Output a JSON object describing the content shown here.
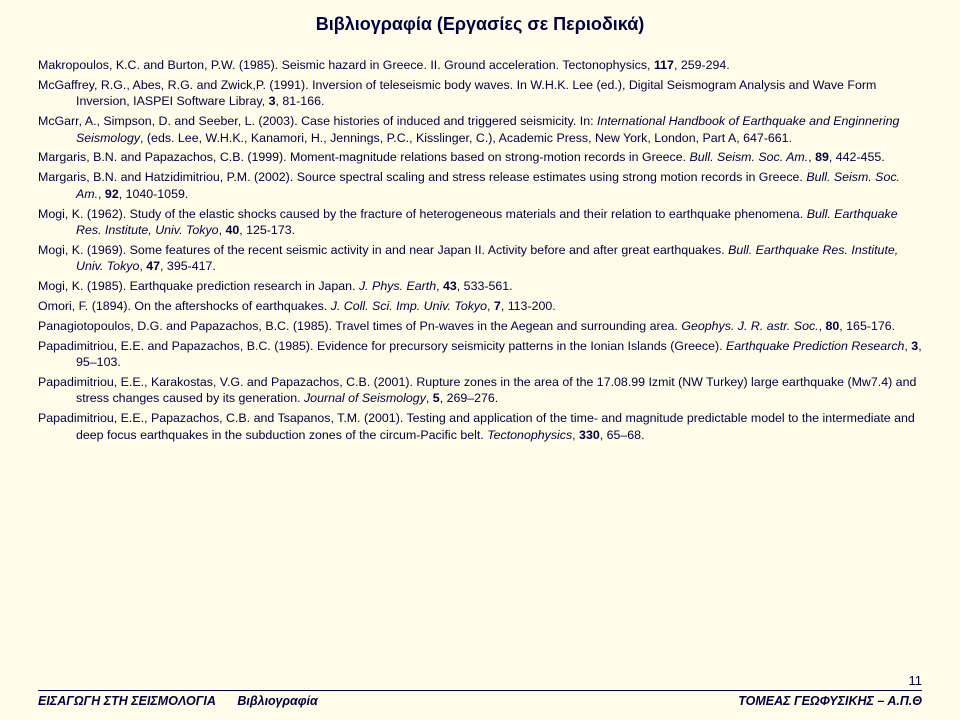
{
  "title": "Βιβλιογραφία  (Εργασίες σε Περιοδικά)",
  "references": [
    "Makropoulos, K.C. and Burton, P.W. (1985). Seismic hazard in Greece. II. Ground acceleration. Tectonophysics, <b>117</b>, 259-294.",
    "McGaffrey, R.G., Abes, R.G. and Zwick,P. (1991). Inversion of teleseismic body waves. In W.H.K. Lee (ed.), Digital Seismogram Analysis and Wave Form Inversion, IASPEI Software Libray, <b>3</b>, 81-166.",
    "McGarr, A., Simpson, D. and Seeber, L. (2003). Case histories of induced and triggered seismicity. In: <i>International Handbook of Earthquake and Enginnering Seismology</i>, (eds. Lee, W.H.K., Kanamori, H., Jennings, P.C., Kisslinger, C.), Academic Press, New York, London, Part A, 647-661.",
    "Margaris, B.N. and Papazachos, C.B. (1999). Moment-magnitude relations based on strong-motion records in Greece. <i>Bull. Seism. Soc. Am.</i>, <b>89</b>, 442-455.",
    "Margaris, B.N. and Hatzidimitriou, P.M. (2002). Source spectral scaling and stress release estimates using strong motion records in Greece. <i>Bull. Seism. Soc. Am.</i>, <b>92</b>, 1040-1059.",
    "Mogi, K. (1962). Study of the elastic shocks caused by the fracture of heterogeneous materials and their relation to earthquake phenomena. <i>Bull. Earthquake Res. Institute, Univ. Tokyo</i>, <b>40</b>, 125-173.",
    "Mogi, K. (1969). Some features of the recent seismic activity in and near Japan II. Activity before and after great earthquakes. <i>Bull. Earthquake Res. Institute, Univ. Tokyo</i>, <b>47</b>, 395-417.",
    "Mogi, K. (1985). Earthquake prediction research in Japan. <i>J. Phys. Earth</i>, <b>43</b>, 533-561.",
    "Omori, F. (1894). On the aftershocks of earthquakes. <i>J. Coll. Sci. Imp. Univ. Tokyo</i>, <b>7</b>, 113-200.",
    "Panagiotopoulos, D.G. and Papazachos, B.C. (1985). Travel times of Pn-waves in the Aegean and surrounding area. <i>Geophys. J. R. astr. Soc.</i>, <b>80</b>, 165-176.",
    "Papadimitriou, E.E. and Papazachos, B.C. (1985). Evidence for precursory seismicity patterns in the Ionian Islands (Greece). <i>Earthquake Prediction Research</i>, <b>3</b>, 95–103.",
    "Papadimitriou, E.E., Karakostas, V.G. and Papazachos, C.B. (2001). Rupture zones in the area of the 17.08.99 Izmit (NW Turkey) large earthquake (Mw7.4) and stress changes caused by its generation. <i>Journal of Seismology</i>, <b>5</b>, 269–276.",
    "Papadimitriou, E.E., Papazachos, C.B. and Tsapanos, T.M. (2001). Testing and application of the time- and magnitude predictable model to the intermediate and deep focus earthquakes in the subduction zones of the circum-Pacific belt. <i>Tectonophysics</i>, <b>330</b>, 65–68."
  ],
  "page_number": "11",
  "footer_left_a": "ΕΙΣΑΓΩΓΗ ΣΤΗ ΣΕΙΣΜΟΛΟΓΙΑ",
  "footer_left_b": "Βιβλιογραφία",
  "footer_right": "ΤΟΜΕΑΣ ΓΕΩΦΥΣΙΚΗΣ – Α.Π.Θ"
}
